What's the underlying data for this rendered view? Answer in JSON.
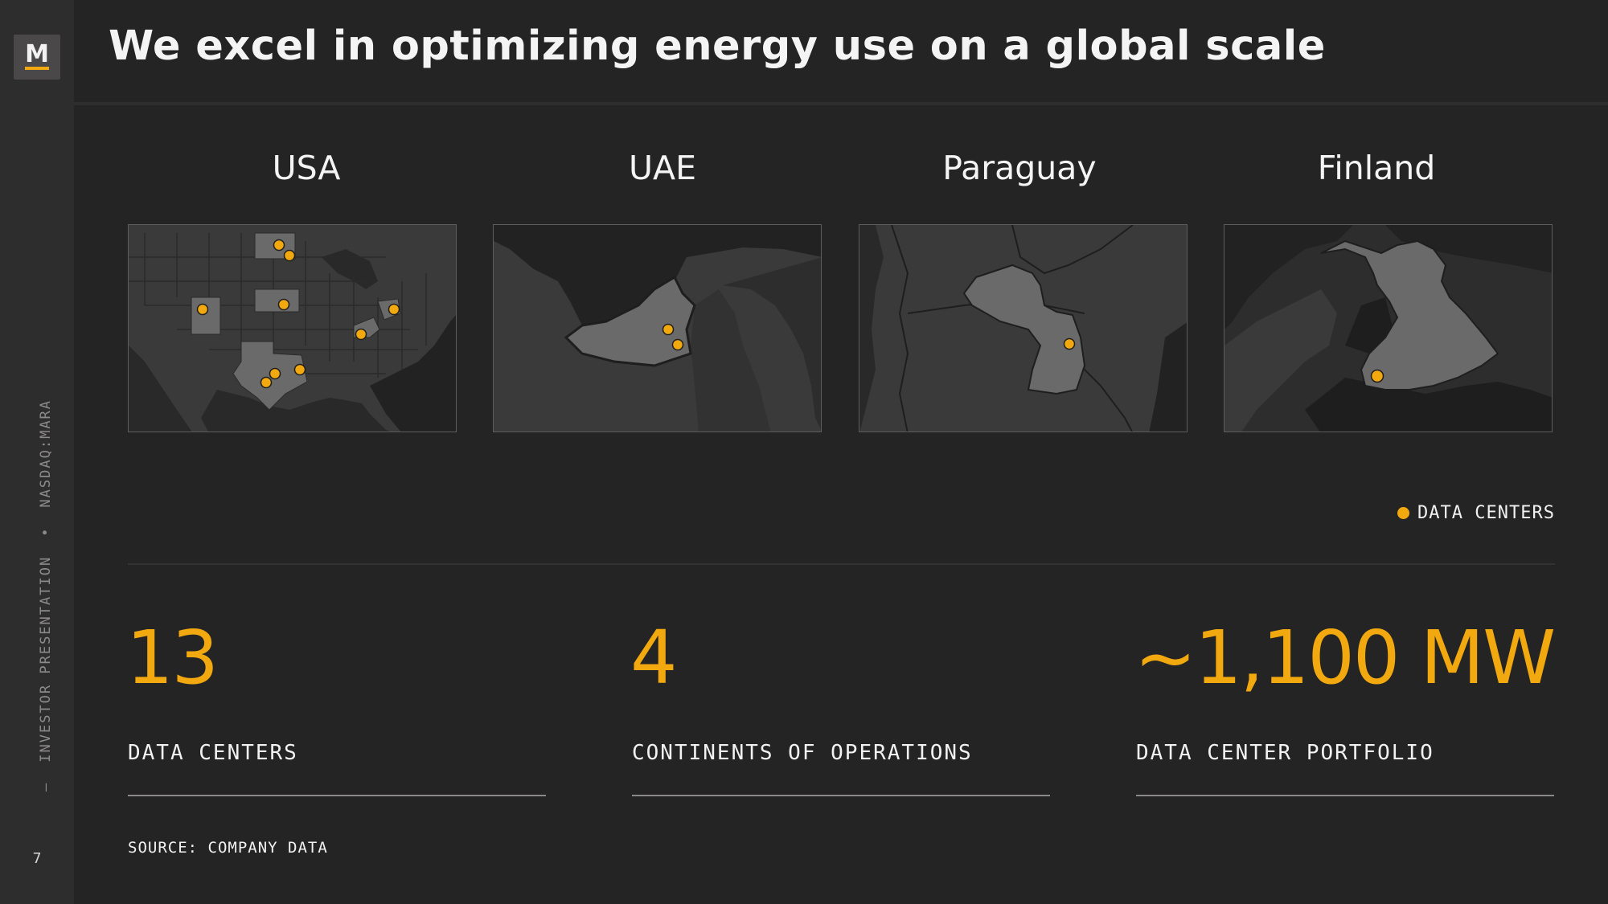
{
  "header": {
    "title": "We excel in optimizing energy use on a global scale"
  },
  "sidebar": {
    "logo_letter": "M",
    "page_number": "7",
    "vertical_text": {
      "presentation": "INVESTOR PRESENTATION",
      "bullet": "•",
      "ticker": "NASDAQ:MARA"
    }
  },
  "maps": [
    {
      "name": "USA",
      "data_center_dots": 9
    },
    {
      "name": "UAE",
      "data_center_dots": 2
    },
    {
      "name": "Paraguay",
      "data_center_dots": 1
    },
    {
      "name": "Finland",
      "data_center_dots": 1
    }
  ],
  "legend": {
    "label": "DATA CENTERS",
    "color": "#f2a90f"
  },
  "stats": [
    {
      "value": "13",
      "label": "DATA CENTERS"
    },
    {
      "value": "4",
      "label": "CONTINENTS OF OPERATIONS"
    },
    {
      "value": "~1,100 MW",
      "label": "DATA CENTER PORTFOLIO"
    }
  ],
  "footer": {
    "source": "SOURCE: COMPANY DATA"
  },
  "colors": {
    "background": "#252424",
    "sidebar": "#2e2d2d",
    "accent": "#f2a90f",
    "map_land": "#3b3a3a",
    "map_highlight": "#6b6a6a",
    "map_water": "#1f1e1e"
  }
}
